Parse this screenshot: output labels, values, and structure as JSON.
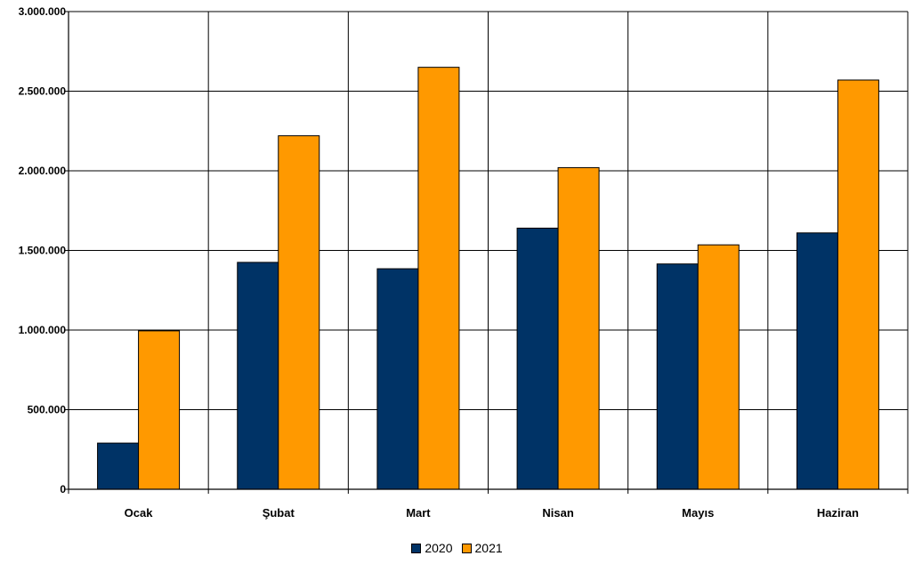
{
  "chart_data": {
    "type": "bar",
    "categories": [
      "Ocak",
      "Şubat",
      "Mart",
      "Nisan",
      "Mayıs",
      "Haziran"
    ],
    "series": [
      {
        "name": "2020",
        "color": "#003366",
        "values": [
          290000,
          1425000,
          1385000,
          1640000,
          1415000,
          1610000
        ]
      },
      {
        "name": "2021",
        "color": "#ff9900",
        "values": [
          995000,
          2220000,
          2650000,
          2020000,
          1535000,
          2570000
        ]
      }
    ],
    "ylim": [
      0,
      3000000
    ],
    "yticks": [
      0,
      500000,
      1000000,
      1500000,
      2000000,
      2500000,
      3000000
    ],
    "ytick_labels": [
      "0",
      "500.000",
      "1.000.000",
      "1.500.000",
      "2.000.000",
      "2.500.000",
      "3.000.000"
    ],
    "grid": true,
    "legend_position": "bottom-center",
    "title": "",
    "xlabel": "",
    "ylabel": ""
  }
}
